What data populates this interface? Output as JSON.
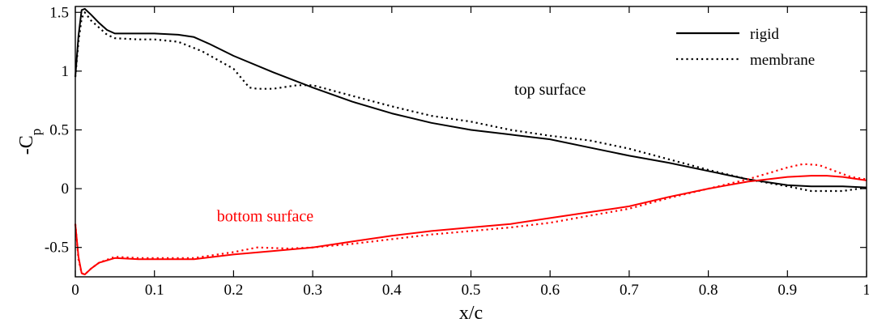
{
  "chart_data": {
    "type": "line",
    "title": "",
    "xlabel": "x/c",
    "ylabel": "-C",
    "ylabel_subscript": "p",
    "xlim": [
      0,
      1
    ],
    "ylim": [
      -0.75,
      1.55
    ],
    "xticks": [
      0,
      0.1,
      0.2,
      0.3,
      0.4,
      0.5,
      0.6,
      0.7,
      0.8,
      0.9,
      1
    ],
    "xtick_labels": [
      "0",
      "0.1",
      "0.2",
      "0.3",
      "0.4",
      "0.5",
      "0.6",
      "0.7",
      "0.8",
      "0.9",
      "1"
    ],
    "yticks": [
      -0.5,
      0,
      0.5,
      1,
      1.5
    ],
    "ytick_labels": [
      "-0.5",
      "0",
      "0.5",
      "1",
      "1.5"
    ],
    "grid": false,
    "legend_position": "top-right",
    "legend": [
      {
        "label": "rigid",
        "style": "solid"
      },
      {
        "label": "membrane",
        "style": "dotted"
      }
    ],
    "annotations": [
      {
        "text": "top surface",
        "x": 0.6,
        "y": 0.8,
        "color": "#000000"
      },
      {
        "text": "bottom surface",
        "x": 0.24,
        "y": -0.28,
        "color": "#ff0000"
      }
    ],
    "series": [
      {
        "name": "rigid",
        "surface": "top",
        "style": "solid",
        "color": "#000000",
        "x": [
          0,
          0.004,
          0.008,
          0.012,
          0.02,
          0.03,
          0.04,
          0.05,
          0.07,
          0.1,
          0.13,
          0.15,
          0.17,
          0.2,
          0.25,
          0.3,
          0.35,
          0.4,
          0.45,
          0.5,
          0.55,
          0.6,
          0.65,
          0.7,
          0.75,
          0.8,
          0.85,
          0.9,
          0.93,
          0.95,
          0.97,
          1.0
        ],
        "y": [
          0.95,
          1.3,
          1.52,
          1.53,
          1.48,
          1.41,
          1.35,
          1.32,
          1.32,
          1.32,
          1.31,
          1.29,
          1.23,
          1.13,
          0.99,
          0.86,
          0.74,
          0.64,
          0.56,
          0.5,
          0.46,
          0.42,
          0.35,
          0.28,
          0.22,
          0.15,
          0.08,
          0.03,
          0.02,
          0.02,
          0.02,
          0.01
        ]
      },
      {
        "name": "membrane",
        "surface": "top",
        "style": "dotted",
        "color": "#000000",
        "x": [
          0,
          0.004,
          0.008,
          0.012,
          0.02,
          0.03,
          0.04,
          0.05,
          0.08,
          0.1,
          0.13,
          0.16,
          0.2,
          0.22,
          0.23,
          0.25,
          0.28,
          0.3,
          0.35,
          0.4,
          0.45,
          0.5,
          0.55,
          0.6,
          0.65,
          0.7,
          0.75,
          0.8,
          0.85,
          0.9,
          0.93,
          0.95,
          0.97,
          1.0
        ],
        "y": [
          0.95,
          1.25,
          1.45,
          1.5,
          1.43,
          1.37,
          1.31,
          1.28,
          1.27,
          1.27,
          1.25,
          1.17,
          1.02,
          0.86,
          0.85,
          0.85,
          0.88,
          0.88,
          0.79,
          0.7,
          0.62,
          0.57,
          0.5,
          0.45,
          0.41,
          0.34,
          0.25,
          0.16,
          0.08,
          0.02,
          -0.02,
          -0.02,
          -0.02,
          0.01
        ]
      },
      {
        "name": "rigid",
        "surface": "bottom",
        "style": "solid",
        "color": "#ff0000",
        "x": [
          0,
          0.004,
          0.008,
          0.012,
          0.02,
          0.03,
          0.05,
          0.08,
          0.1,
          0.15,
          0.2,
          0.25,
          0.3,
          0.35,
          0.4,
          0.45,
          0.5,
          0.55,
          0.6,
          0.65,
          0.7,
          0.75,
          0.8,
          0.85,
          0.9,
          0.93,
          0.95,
          0.97,
          1.0
        ],
        "y": [
          -0.3,
          -0.58,
          -0.72,
          -0.73,
          -0.68,
          -0.63,
          -0.59,
          -0.6,
          -0.6,
          -0.6,
          -0.56,
          -0.53,
          -0.5,
          -0.45,
          -0.4,
          -0.36,
          -0.33,
          -0.3,
          -0.25,
          -0.2,
          -0.15,
          -0.07,
          0.0,
          0.06,
          0.1,
          0.11,
          0.11,
          0.1,
          0.07
        ]
      },
      {
        "name": "membrane",
        "surface": "bottom",
        "style": "dotted",
        "color": "#ff0000",
        "x": [
          0,
          0.004,
          0.008,
          0.012,
          0.02,
          0.03,
          0.05,
          0.08,
          0.1,
          0.15,
          0.2,
          0.23,
          0.27,
          0.3,
          0.35,
          0.4,
          0.45,
          0.5,
          0.55,
          0.6,
          0.65,
          0.7,
          0.75,
          0.8,
          0.85,
          0.88,
          0.9,
          0.92,
          0.94,
          0.96,
          0.98,
          1.0
        ],
        "y": [
          -0.3,
          -0.6,
          -0.72,
          -0.73,
          -0.68,
          -0.63,
          -0.58,
          -0.59,
          -0.59,
          -0.59,
          -0.54,
          -0.5,
          -0.51,
          -0.5,
          -0.47,
          -0.43,
          -0.39,
          -0.36,
          -0.33,
          -0.29,
          -0.23,
          -0.17,
          -0.08,
          0.0,
          0.08,
          0.14,
          0.18,
          0.21,
          0.2,
          0.15,
          0.1,
          0.08
        ]
      }
    ]
  }
}
